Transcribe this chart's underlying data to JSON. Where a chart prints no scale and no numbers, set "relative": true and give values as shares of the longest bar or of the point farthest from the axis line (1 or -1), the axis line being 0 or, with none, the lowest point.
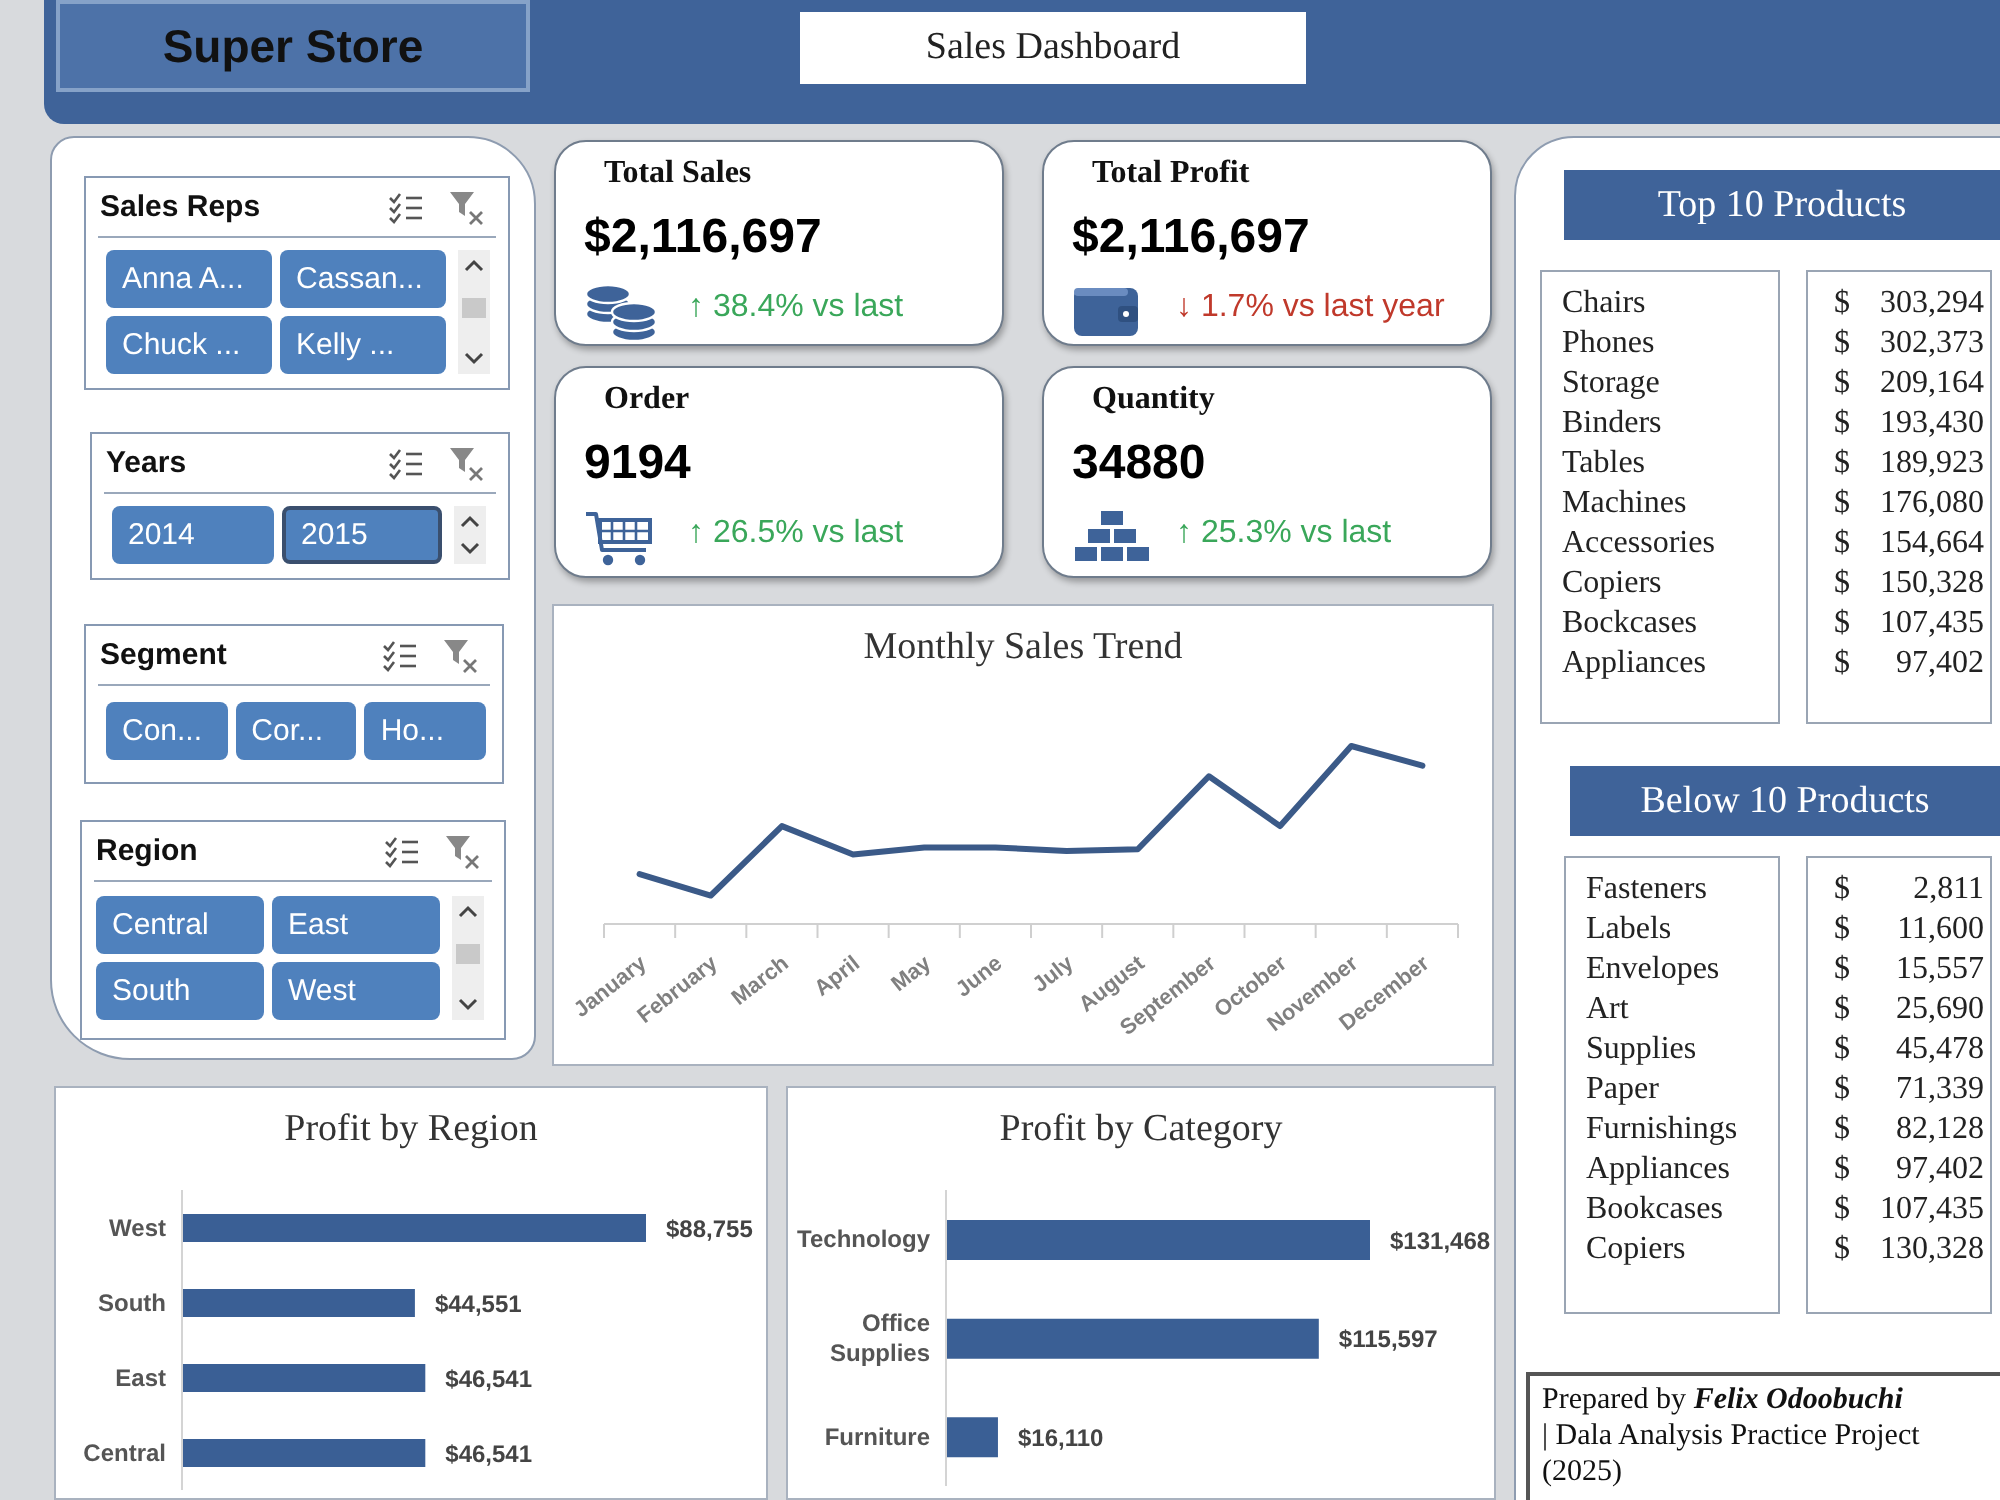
{
  "chart_data": [
    {
      "type": "other",
      "title": "Super Store",
      "subtitle": "Sales Dashboard"
    },
    {
      "type": "other",
      "title": "Sales Reps",
      "categories": [
        "Anna A...",
        "Cassan...",
        "Chuck ...",
        "Kelly ..."
      ]
    },
    {
      "type": "other",
      "title": "Years",
      "categories": [
        "2014",
        "2015"
      ]
    },
    {
      "type": "other",
      "title": "Segment",
      "categories": [
        "Con...",
        "Cor...",
        "Ho..."
      ]
    },
    {
      "type": "other",
      "title": "Region",
      "categories": [
        "Central",
        "East",
        "South",
        "West"
      ]
    },
    {
      "type": "other",
      "title": "Total Sales",
      "annotations": [
        "$2,116,697",
        "↑ 38.4% vs last"
      ],
      "color": "#3aa75a"
    },
    {
      "type": "other",
      "title": "Total Profit",
      "annotations": [
        "$2,116,697",
        "↓ 1.7% vs last year"
      ],
      "color": "#c0392b"
    },
    {
      "type": "other",
      "title": "Order",
      "annotations": [
        "9194",
        "↑ 26.5% vs last"
      ],
      "color": "#3aa75a"
    },
    {
      "type": "other",
      "title": "Quantity",
      "annotations": [
        "34880",
        "↑ 25.3% vs last"
      ],
      "color": "#3aa75a"
    },
    {
      "type": "line",
      "title": "Monthly Sales Trend",
      "categories": [
        "January",
        "February",
        "March",
        "April",
        "May",
        "June",
        "July",
        "August",
        "September",
        "October",
        "November",
        "December"
      ],
      "values": [
        0.28,
        0.16,
        0.55,
        0.39,
        0.43,
        0.43,
        0.41,
        0.42,
        0.83,
        0.55,
        1,
        0.89
      ],
      "relative": true,
      "color": "#3b5a88"
    },
    {
      "type": "other",
      "title": "Top 10 Products",
      "categories": [
        "Chairs",
        "Phones",
        "Storage",
        "Binders",
        "Tables",
        "Machines",
        "Accessories",
        "Copiers",
        "Bockcases",
        "Appliances"
      ],
      "value_labels": [
        "$ 303,294",
        "$ 302,373",
        "$ 209,164",
        "$ 193,430",
        "$ 189,923",
        "$ 176,080",
        "$ 154,664",
        "$ 150,328",
        "$ 107,435",
        "$ 97,402"
      ]
    },
    {
      "type": "other",
      "title": "Below 10 Products",
      "categories": [
        "Fasteners",
        "Labels",
        "Envelopes",
        "Art",
        "Supplies",
        "Paper",
        "Furnishings",
        "Appliances",
        "Bookcases",
        "Copiers"
      ],
      "value_labels": [
        "$ 2,811",
        "$ 11,600",
        "$ 15,557",
        "$ 25,690",
        "$ 45,478",
        "$ 71,339",
        "$ 82,128",
        "$ 97,402",
        "$ 107,435",
        "$ 130,328"
      ]
    },
    {
      "type": "bar",
      "orientation": "horizontal",
      "title": "Profit by Region",
      "categories": [
        "West",
        "South",
        "East",
        "Central"
      ],
      "values": [
        88755,
        44551,
        46541,
        46541
      ],
      "value_labels": [
        "$88,755",
        "$44,551",
        "$46,541",
        "$46,541"
      ],
      "color": "#3a5f95"
    },
    {
      "type": "bar",
      "orientation": "horizontal",
      "title": "Profit by Category",
      "categories": [
        "Technology",
        "Office Supplies",
        "Furniture"
      ],
      "values": [
        131468,
        115597,
        16110
      ],
      "value_labels": [
        "$131,468",
        "$115,597",
        "$16,110"
      ],
      "color": "#3a5f95"
    },
    {
      "type": "other",
      "annotations": [
        "Prepared by",
        "Felix Odoobuchi",
        "| Dala Analysis Practice Project (2025)"
      ]
    }
  ]
}
